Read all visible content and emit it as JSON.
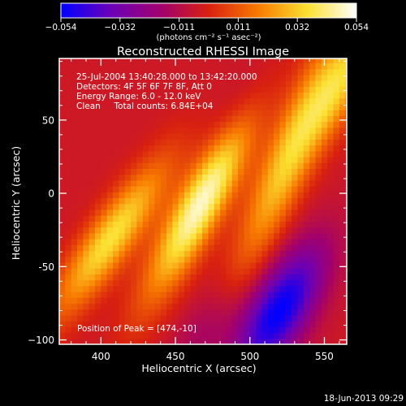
{
  "chart_data": {
    "type": "heatmap",
    "title": "Reconstructed RHESSI Image",
    "xlabel": "Heliocentric X (arcsec)",
    "ylabel": "Heliocentric Y (arcsec)",
    "xlim": [
      372,
      565
    ],
    "ylim": [
      -103,
      92
    ],
    "x_ticks": [
      {
        "value": 400,
        "label": "400"
      },
      {
        "value": 450,
        "label": "450"
      },
      {
        "value": 500,
        "label": "500"
      },
      {
        "value": 550,
        "label": "550"
      }
    ],
    "y_ticks": [
      {
        "value": 50,
        "label": "50"
      },
      {
        "value": 0,
        "label": "0"
      },
      {
        "value": -50,
        "label": "-50"
      },
      {
        "value": -100,
        "label": "−100"
      }
    ],
    "colorbar": {
      "range": [
        -0.054,
        0.054
      ],
      "tick_labels": [
        "−0.054",
        "−0.032",
        "−0.011",
        "0.011",
        "0.032",
        "0.054"
      ],
      "units_label": "(photons cm⁻² s⁻¹ asec⁻²)",
      "colors": [
        "#0000ff",
        "#6a00b8",
        "#a00070",
        "#d82010",
        "#f87a00",
        "#fbe030",
        "#ffffff"
      ]
    },
    "annotations": [
      "25-Jul-2004 13:40:28.000 to 13:42:20.000",
      "Detectors: 4F 5F 6F 7F 8F, Att 0",
      "Energy Range: 6.0 - 12.0 keV",
      "Clean     Total counts: 6.84E+04"
    ],
    "peak_label": "Position of Peak = [474,-10]",
    "peak_position": [
      474,
      -10
    ],
    "sources": [
      {
        "x": 407,
        "y": -30,
        "peak": 0.041,
        "angle_deg": 55,
        "sigma_major": 44,
        "sigma_minor": 11
      },
      {
        "x": 468,
        "y": -5,
        "peak": 0.054,
        "angle_deg": 62,
        "sigma_major": 50,
        "sigma_minor": 11
      },
      {
        "x": 528,
        "y": 30,
        "peak": 0.038,
        "angle_deg": 68,
        "sigma_major": 60,
        "sigma_minor": 11
      },
      {
        "x": 565,
        "y": 80,
        "peak": 0.03,
        "angle_deg": 65,
        "sigma_major": 35,
        "sigma_minor": 10
      },
      {
        "x": 520,
        "y": -80,
        "peak": -0.05,
        "angle_deg": 60,
        "sigma_major": 35,
        "sigma_minor": 14
      },
      {
        "x": 470,
        "y": -95,
        "peak": -0.012,
        "angle_deg": 60,
        "sigma_major": 25,
        "sigma_minor": 12
      },
      {
        "x": 495,
        "y": 55,
        "peak": -0.01,
        "angle_deg": 60,
        "sigma_major": 30,
        "sigma_minor": 12
      }
    ]
  },
  "footer": {
    "timestamp": "18-Jun-2013 09:29"
  }
}
